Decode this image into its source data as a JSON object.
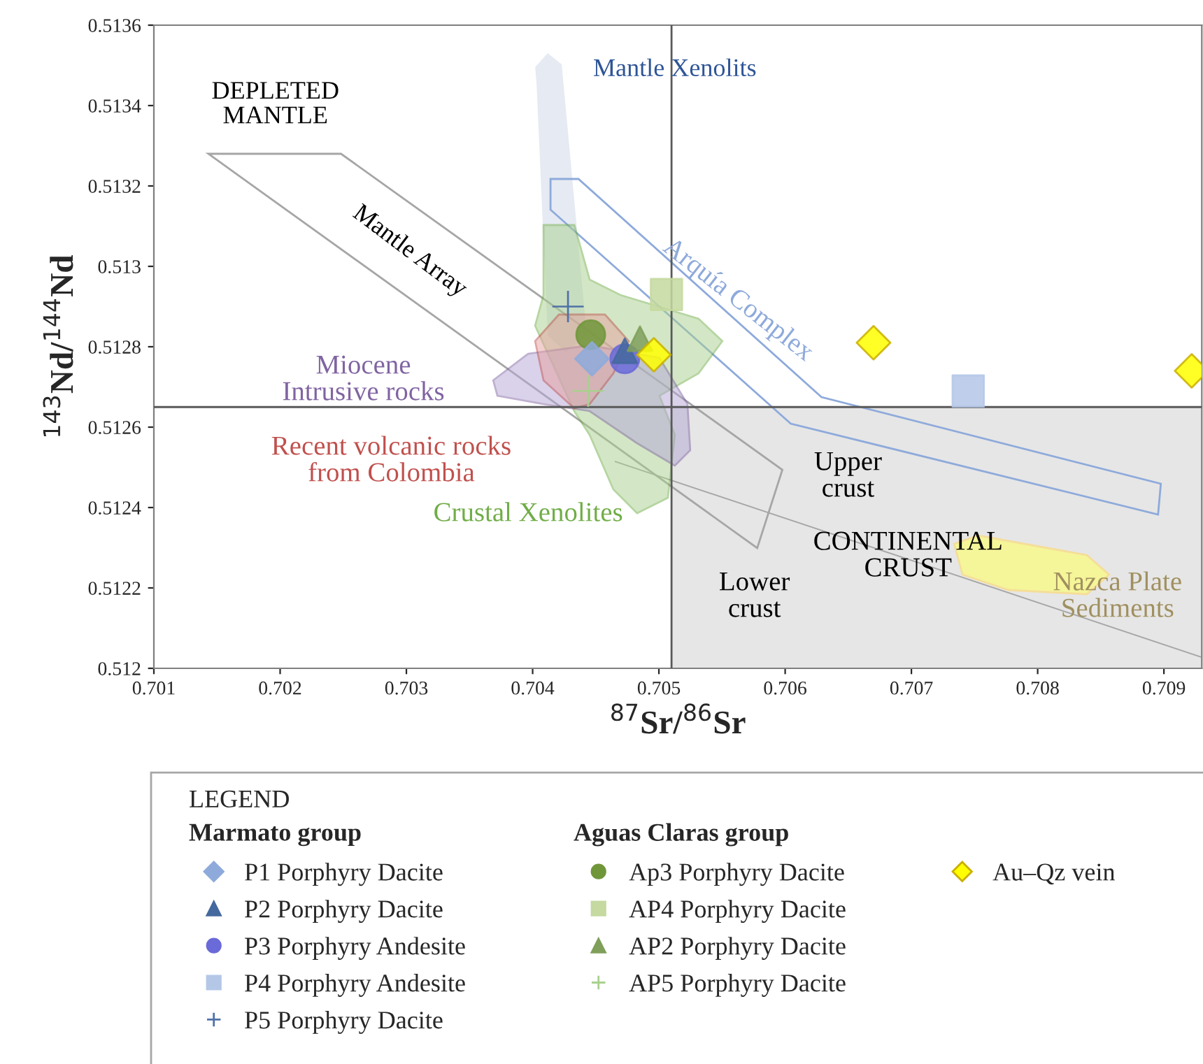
{
  "chart_data": {
    "type": "scatter",
    "xlabel": "$^{87}$Sr/$^{86}$Sr",
    "ylabel": "$^{143}$Nd/$^{144}$Nd",
    "legend_title": "LEGEND",
    "xlim": [
      0.701,
      0.7093
    ],
    "xticks": [
      0.701,
      0.702,
      0.703,
      0.704,
      0.705,
      0.706,
      0.707,
      0.708,
      0.709
    ],
    "ylim": [
      0.512,
      0.5136
    ],
    "yticks": [
      0.512,
      0.5122,
      0.5124,
      0.5126,
      0.5128,
      0.513,
      0.5132,
      0.5134,
      0.5136
    ],
    "grid": false,
    "legend": "bottom",
    "ref_lines": [
      {
        "axis": "x",
        "value": 0.7051,
        "color": "#595959"
      },
      {
        "axis": "y",
        "value": 0.51265,
        "color": "#595959"
      }
    ],
    "series": [
      {
        "name": "P1 Porphyry Dacite",
        "color": "#8eaadb",
        "marker": "diamond",
        "x": [
          0.70447
        ],
        "values": [
          0.51277
        ]
      },
      {
        "name": "P2 Porphyry Dacite",
        "color": "#44699e",
        "marker": "triangle",
        "x": [
          0.70473
        ],
        "values": [
          0.51279
        ]
      },
      {
        "name": "P3 Porphyry Andesite",
        "color": "#6a6ad8",
        "marker": "circle",
        "x": [
          0.70473
        ],
        "values": [
          0.51277
        ]
      },
      {
        "name": "P4 Porphyry Andesite",
        "color": "#b4c7e7",
        "marker": "square",
        "x": [
          0.70745
        ],
        "values": [
          0.51269
        ]
      },
      {
        "name": "P5 Porphyry Dacite",
        "color": "#4f71a8",
        "marker": "cross",
        "x": [
          0.70428
        ],
        "values": [
          0.5129
        ]
      },
      {
        "name": "Ap3 Porphyry Dacite",
        "color": "#70963a",
        "marker": "circle",
        "x": [
          0.70446
        ],
        "values": [
          0.51283
        ]
      },
      {
        "name": "AP4 Porphyry Dacite",
        "color": "#c5d9a0",
        "marker": "square",
        "x": [
          0.70506
        ],
        "values": [
          0.51293
        ]
      },
      {
        "name": "AP2 Porphyry Dacite",
        "color": "#7f9f5a",
        "marker": "triangle",
        "x": [
          0.70485
        ],
        "values": [
          0.51282
        ]
      },
      {
        "name": "AP5 Porphyry Dacite",
        "color": "#a9d18e",
        "marker": "cross",
        "x": [
          0.70444
        ],
        "values": [
          0.51269
        ]
      },
      {
        "name": "Au–Qz vein",
        "color": "#ffff00",
        "marker": "diamond",
        "x": [
          0.70496,
          0.7067,
          0.70922
        ],
        "values": [
          0.51278,
          0.51281,
          0.51274
        ]
      }
    ],
    "annotations": [
      "DEPLETED\nMANTLE",
      "Mantle Array",
      "Mantle Xenolits",
      "Arquía Complex",
      "Miocene\nIntrusive rocks",
      "Recent volcanic rocks\nfrom Colombia",
      "Crustal Xenolites",
      "Upper\ncrust",
      "CONTINENTAL\nCRUST",
      "Lower\ncrust",
      "Nazca Plate\nSediments",
      "Marmato group",
      "Aguas Claras group"
    ]
  }
}
